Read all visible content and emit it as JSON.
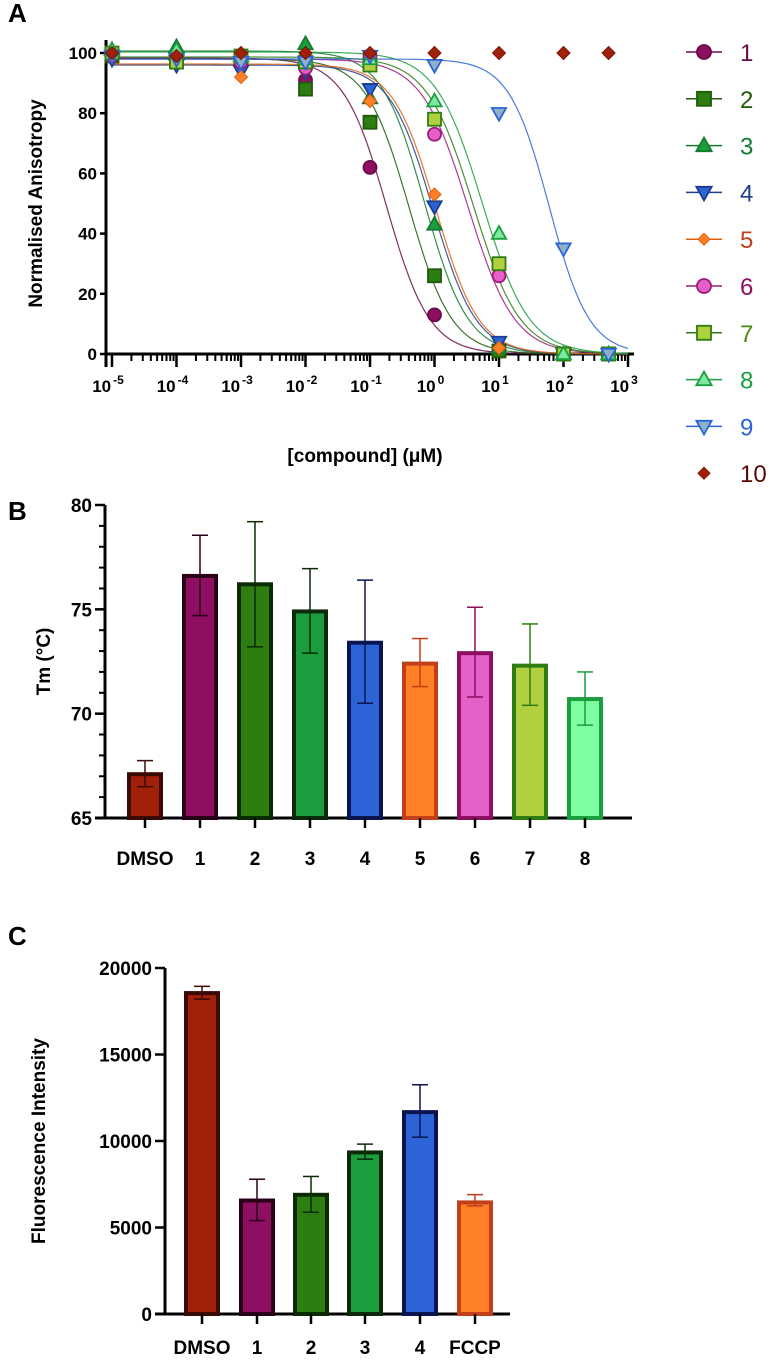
{
  "chart_data": [
    {
      "panel": "A",
      "type": "scatter",
      "xlabel": "[compound] (μM)",
      "ylabel": "Normalised Anisotropy",
      "x_scale": "log",
      "xlim": [
        1e-05,
        1000
      ],
      "ylim": [
        0,
        100
      ],
      "x_tick_labels": [
        {
          "base": "10",
          "exp": "-5"
        },
        {
          "base": "10",
          "exp": "-4"
        },
        {
          "base": "10",
          "exp": "-3"
        },
        {
          "base": "10",
          "exp": "-2"
        },
        {
          "base": "10",
          "exp": "-1"
        },
        {
          "base": "10",
          "exp": "0"
        },
        {
          "base": "10",
          "exp": "1"
        },
        {
          "base": "10",
          "exp": "2"
        },
        {
          "base": "10",
          "exp": "3"
        }
      ],
      "y_ticks": [
        "0",
        "20",
        "40",
        "60",
        "80",
        "100"
      ],
      "legend_position": "right",
      "x": [
        1e-05,
        0.0001,
        0.001,
        0.01,
        0.1,
        1,
        10,
        100,
        500
      ],
      "series": [
        {
          "name": "1",
          "marker": "circle",
          "color": "#8e0e62",
          "edge": "#6a0a48",
          "values": [
            100,
            98,
            97,
            91,
            62,
            13,
            1,
            0,
            0
          ],
          "fit_ic50": 0.18,
          "hill": 1.3
        },
        {
          "name": "2",
          "marker": "square",
          "color": "#2e7d10",
          "edge": "#1f5a0a",
          "values": [
            99,
            97,
            98,
            88,
            77,
            26,
            1,
            0,
            0
          ],
          "fit_ic50": 0.4,
          "hill": 1.3
        },
        {
          "name": "3",
          "marker": "triangle-up",
          "color": "#1a9e3e",
          "edge": "#137a2f",
          "values": [
            101,
            102,
            99,
            103,
            85,
            43,
            2,
            0,
            0
          ],
          "fit_ic50": 0.7,
          "hill": 1.3
        },
        {
          "name": "4",
          "marker": "triangle-down",
          "color": "#2c64d8",
          "edge": "#1d3f8a",
          "values": [
            98,
            96,
            94,
            94,
            88,
            49,
            4,
            0,
            0
          ],
          "fit_ic50": 0.95,
          "hill": 1.3
        },
        {
          "name": "5",
          "marker": "diamond",
          "color": "#ff7f27",
          "edge": "#e06010",
          "values": [
            99,
            98,
            92,
            96,
            84,
            53,
            2,
            0,
            0
          ],
          "fit_ic50": 1.05,
          "hill": 1.3
        },
        {
          "name": "6",
          "marker": "circle",
          "color": "#e45fc8",
          "edge": "#9a1a7a",
          "values": [
            99,
            98,
            97,
            95,
            99,
            73,
            26,
            0,
            0
          ],
          "fit_ic50": 3.3,
          "hill": 1.2
        },
        {
          "name": "7",
          "marker": "square",
          "color": "#b0d040",
          "edge": "#2e7d10",
          "values": [
            100,
            97,
            99,
            97,
            96,
            78,
            30,
            0,
            0
          ],
          "fit_ic50": 4.0,
          "hill": 1.2
        },
        {
          "name": "8",
          "marker": "triangle-up",
          "color": "#7ee8a0",
          "edge": "#1a9e3e",
          "values": [
            101,
            101,
            99,
            98,
            98,
            84,
            40,
            0,
            0
          ],
          "fit_ic50": 5.5,
          "hill": 1.2
        },
        {
          "name": "9",
          "marker": "triangle-down",
          "color": "#8fb0c8",
          "edge": "#2c64d8",
          "values": [
            99,
            98,
            97,
            97,
            99,
            96,
            80,
            35,
            0
          ],
          "fit_ic50": 60,
          "hill": 1.4
        },
        {
          "name": "10",
          "marker": "diamond",
          "color": "#a0200a",
          "edge": "#7a1505",
          "values": [
            100,
            99,
            100,
            100,
            100,
            100,
            100,
            100,
            100
          ]
        }
      ],
      "legend_label_colors": [
        "#6a0a48",
        "#1f5a0a",
        "#137a2f",
        "#1d3f8a",
        "#c0401a",
        "#8e0e62",
        "#4a8a10",
        "#1a9e3e",
        "#2c64d8",
        "#5a0a05"
      ]
    },
    {
      "panel": "B",
      "type": "bar",
      "ylabel": "Tm (°C)",
      "ylim": [
        65,
        80
      ],
      "y_ticks": [
        "65",
        "70",
        "75",
        "80"
      ],
      "categories": [
        "DMSO",
        "1",
        "2",
        "3",
        "4",
        "5",
        "6",
        "7",
        "8"
      ],
      "values": [
        67.1,
        76.6,
        76.2,
        74.9,
        73.4,
        72.4,
        72.9,
        72.3,
        70.7
      ],
      "error_high": [
        67.75,
        78.55,
        79.2,
        76.95,
        76.4,
        73.6,
        75.1,
        74.3,
        72.0
      ],
      "error_low": [
        66.5,
        74.7,
        73.2,
        72.9,
        70.5,
        71.3,
        70.8,
        70.4,
        69.45
      ],
      "colors": [
        "#a0200a",
        "#8e0e62",
        "#2e7d10",
        "#1a9e3e",
        "#2c64d8",
        "#ff7f27",
        "#e45fc8",
        "#b0d040",
        "#7effa0"
      ],
      "edges": [
        "#3a0a04",
        "#2a0018",
        "#0a2a04",
        "#0a2a0a",
        "#0a1450",
        "#c0401a",
        "#8e0e62",
        "#2e7d10",
        "#1a9e3e"
      ]
    },
    {
      "panel": "C",
      "type": "bar",
      "ylabel": "Fluorescence Intensity",
      "ylim": [
        0,
        20000
      ],
      "y_ticks": [
        "0",
        "5000",
        "10000",
        "15000",
        "20000"
      ],
      "categories": [
        "DMSO",
        "1",
        "2",
        "3",
        "4",
        "FCCP"
      ],
      "values": [
        18550,
        6560,
        6890,
        9340,
        11670,
        6450
      ],
      "error_high": [
        18940,
        7790,
        7950,
        9820,
        13250,
        6900
      ],
      "error_low": [
        18200,
        5400,
        5880,
        8950,
        10220,
        6250
      ],
      "colors": [
        "#a0200a",
        "#8e0e62",
        "#2e7d10",
        "#1a9e3e",
        "#2c64d8",
        "#ff7f27"
      ],
      "edges": [
        "#3a0a04",
        "#2a0018",
        "#0a2a04",
        "#0a2a0a",
        "#0a1450",
        "#c0401a"
      ]
    }
  ],
  "panel_labels": {
    "a": "A",
    "b": "B",
    "c": "C"
  }
}
